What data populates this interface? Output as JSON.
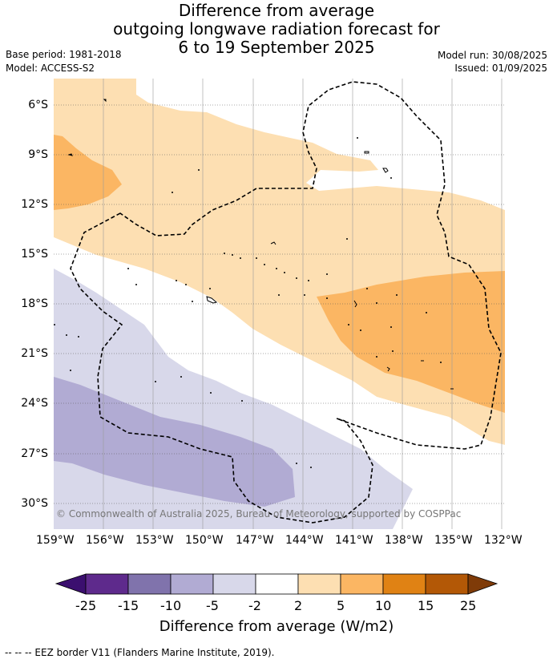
{
  "title": {
    "line1": "Difference from average",
    "line2": "outgoing longwave radiation forecast for",
    "line3": "6 to 19 September 2025"
  },
  "meta": {
    "base_period": "Base period: 1981-2018",
    "model": "Model: ACCESS-S2",
    "model_run": "Model run: 30/08/2025",
    "issued": "Issued: 01/09/2025"
  },
  "map": {
    "lat_labels": [
      "6°S",
      "9°S",
      "12°S",
      "15°S",
      "18°S",
      "21°S",
      "24°S",
      "27°S",
      "30°S"
    ],
    "lon_labels": [
      "159°W",
      "156°W",
      "153°W",
      "150°W",
      "147°W",
      "144°W",
      "141°W",
      "138°W",
      "135°W",
      "132°W"
    ],
    "copyright": "© Commonwealth of Australia 2025, Bureau of Meteorology, supported by COSPPac",
    "colors": {
      "neg_5_2": "#d8d8ea",
      "neg_10_5": "#b1abd3",
      "pos_2_5": "#fddfb2",
      "pos_5_10": "#fbb663"
    }
  },
  "colorbar": {
    "label": "Difference from average (W/m2)",
    "ticks": [
      "-25",
      "-15",
      "-10",
      "-5",
      "-2",
      "2",
      "5",
      "10",
      "15",
      "25"
    ],
    "colors": [
      "#3b0f6f",
      "#5e2a8c",
      "#8073ac",
      "#b1abd3",
      "#d8d8ea",
      "#ffffff",
      "#fddfb2",
      "#fbb663",
      "#e08214",
      "#b35806",
      "#7f3b08"
    ]
  },
  "footnote": "--  --  -- EEZ border V11 (Flanders Marine Institute, 2019)."
}
